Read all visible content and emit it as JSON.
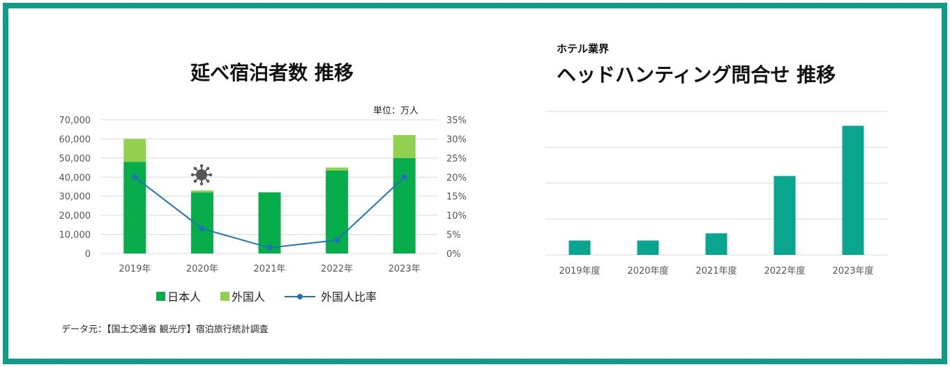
{
  "colors": {
    "border": "#0f9e85",
    "japanese": "#06ad4a",
    "foreign": "#92d050",
    "ratio_line": "#1f73b8",
    "hh_bar": "#0aa58f",
    "grid": "#d9d9d9"
  },
  "left": {
    "title": "延べ宿泊者数 推移",
    "unit_label": "単位：万人",
    "source": "データ元：【国土交通省 観光庁】宿泊旅行統計調査",
    "icon": "virus-icon"
  },
  "right": {
    "subtitle": "ホテル業界",
    "title": "ヘッドハンティング問合せ 推移"
  },
  "chart_data": [
    {
      "type": "bar",
      "title": "延べ宿泊者数 推移",
      "stacked": true,
      "categories": [
        "2019年",
        "2020年",
        "2021年",
        "2022年",
        "2023年"
      ],
      "series": [
        {
          "name": "日本人",
          "values": [
            48000,
            32000,
            32000,
            43500,
            50000
          ]
        },
        {
          "name": "外国人",
          "values": [
            12000,
            1000,
            0,
            1500,
            12000
          ]
        },
        {
          "name": "外国人比率",
          "type": "line",
          "axis": "right",
          "values": [
            20,
            6.5,
            1.5,
            3.5,
            20
          ]
        }
      ],
      "ylim": [
        0,
        70000
      ],
      "yticks": [
        "0",
        "10,000",
        "20,000",
        "30,000",
        "40,000",
        "50,000",
        "60,000",
        "70,000"
      ],
      "y2lim": [
        0,
        35
      ],
      "y2ticks": [
        "0%",
        "5%",
        "10%",
        "15%",
        "20%",
        "25%",
        "30%",
        "35%"
      ],
      "grid": true,
      "legend": "bottom"
    },
    {
      "type": "bar",
      "title": "ヘッドハンティング問合せ 推移",
      "categories": [
        "2019年度",
        "2020年度",
        "2021年度",
        "2022年度",
        "2023年度"
      ],
      "values": [
        0.4,
        0.4,
        0.6,
        2.2,
        3.6
      ],
      "ylim": [
        0,
        4
      ],
      "grid": true
    }
  ]
}
